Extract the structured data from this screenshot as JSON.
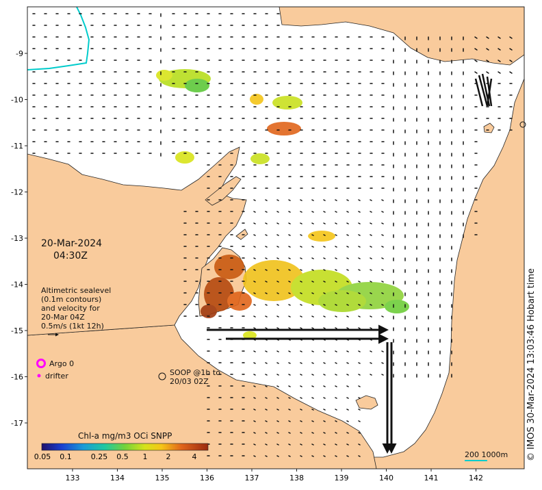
{
  "map": {
    "date": "20-Mar-2024",
    "time": "04:30Z",
    "legend_text": [
      "Altimetric sealevel",
      "(0.1m contours)",
      "and velocity for",
      "20-Mar 04Z",
      "0.5m/s (1kt 12h)"
    ],
    "argo_label": "Argo 0",
    "drifter_label": "drifter",
    "soop_label": [
      "SOOP @1h to",
      "20/03 02Z"
    ],
    "credit": "© IMOS 30-Mar-2024 13:03:46 Hobart time",
    "scale_label": "200  1000m",
    "lon_ticks": [
      "133",
      "134",
      "135",
      "136",
      "137",
      "138",
      "139",
      "140",
      "141",
      "142"
    ],
    "lat_ticks": [
      "-9",
      "-10",
      "-11",
      "-12",
      "-13",
      "-14",
      "-15",
      "-16",
      "-17"
    ],
    "colorbar": {
      "title": "Chl-a mg/m3 OCi SNPP",
      "tick_labels": [
        "0.05",
        "0.1",
        "0.25",
        "0.5",
        "1",
        "2",
        "4"
      ]
    },
    "colors": {
      "land": "#F9CB9C",
      "water": "#FFFFFF",
      "argo": "#FF00FF",
      "isobath": "#00CCCC"
    }
  }
}
